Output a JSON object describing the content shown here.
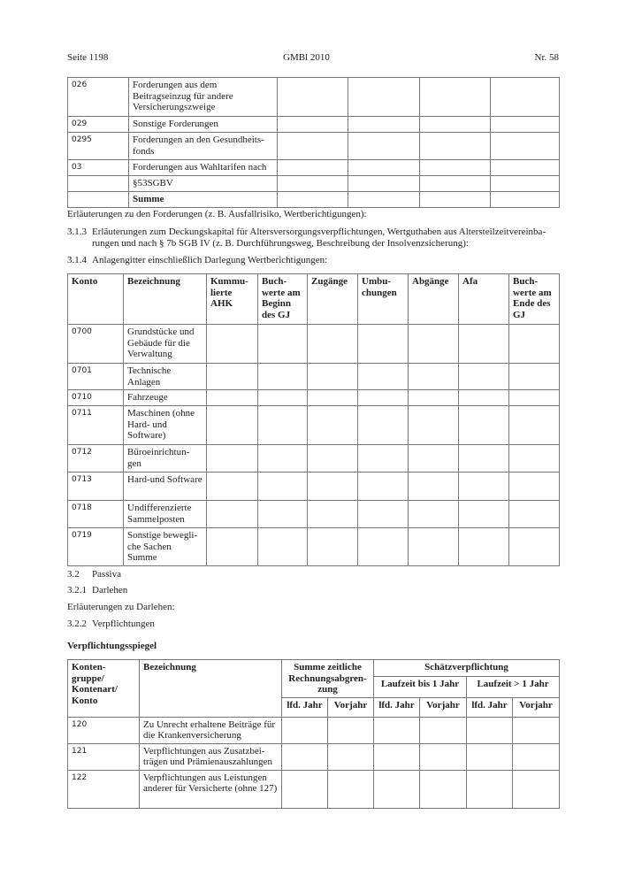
{
  "header": {
    "left": "Seite 1198",
    "center": "GMBl 2010",
    "right": "Nr. 58"
  },
  "table1": {
    "rows": [
      {
        "code": "026",
        "label": "Forderungen aus dem Beitragseinzug für andere Versicherungszweige"
      },
      {
        "code": "029",
        "label": "Sonstige Forderungen"
      },
      {
        "code": "0295",
        "label": "Forderungen an den Gesundheits-fonds"
      },
      {
        "code": "03",
        "label": "Forderungen aus Wahltarifen nach"
      },
      {
        "code": "",
        "label": "§53SGBV"
      },
      {
        "code": "",
        "label": "Summe"
      }
    ]
  },
  "text": {
    "forderungen_note": "Erläuterungen zu den Forderungen (z. B. Ausfallrisiko, Wertberichtigungen):",
    "s313_num": "3.1.3",
    "s313_line1": "Erläuterungen zum Deckungskapital für Altersversorgungsverpflichtungen, Wertguthaben aus Altersteilzeitvereinba-",
    "s313_line2": "rungen und nach § 7b SGB IV (z. B. Durchführungsweg, Beschreibung der Insolvenzsicherung):",
    "s314_num": "3.1.4",
    "s314": "Anlagengitter einschließlich Darlegung Wertberichtigungen:",
    "s32_num": "3.2",
    "s32": "Passiva",
    "s321_num": "3.2.1",
    "s321": "Darlehen",
    "darlehen_note": "Erläuterungen zu Darlehen:",
    "s322_num": "3.2.2",
    "s322": "Verpflichtungen",
    "spiegel_title": "Verpflichtungsspiegel"
  },
  "table2": {
    "headers": [
      "Konto",
      "Bezeichnung",
      "Kummu-lierte AHK",
      "Buch-werte am Beginn des GJ",
      "Zugänge",
      "Umbu-chungen",
      "Abgänge",
      "Afa",
      "Buch-werte am Ende des GJ"
    ],
    "rows": [
      {
        "code": "0700",
        "label": "Grundstücke und Gebäude für die Verwaltung"
      },
      {
        "code": "0701",
        "label": "Technische Anlagen"
      },
      {
        "code": "0710",
        "label": "Fahrzeuge"
      },
      {
        "code": "0711",
        "label": "Maschinen (ohne Hard- und Software)"
      },
      {
        "code": "0712",
        "label": "Büroeinrichtun-gen"
      },
      {
        "code": "0713",
        "label": "Hard-und Software"
      },
      {
        "code": "0718",
        "label": "Undifferenzierte Sammelposten"
      },
      {
        "code": "0719",
        "label": "Sonstige bewegli-che Sachen Summe"
      }
    ]
  },
  "table3": {
    "h_konto": "Konten-gruppe/ Kontenart/ Konto",
    "h_bez": "Bezeichnung",
    "h_summe": "Summe zeitliche Rechnungsabgren-zung",
    "h_schaetz": "Schätzverpflichtung",
    "h_bis1": "Laufzeit bis 1 Jahr",
    "h_gt1": "Laufzeit > 1 Jahr",
    "sub": [
      "lfd. Jahr",
      "Vorjahr",
      "lfd. Jahr",
      "Vorjahr",
      "lfd. Jahr",
      "Vorjahr"
    ],
    "rows": [
      {
        "code": "120",
        "label": "Zu Unrecht erhaltene Beiträge für die Krankenversicherung"
      },
      {
        "code": "121",
        "label": "Verpflichtungen aus Zusatzbei-trägen und Prämienauszahlungen"
      },
      {
        "code": "122",
        "label": "Verpflichtungen aus Leistungen anderer für Versicherte (ohne 127)"
      }
    ]
  }
}
